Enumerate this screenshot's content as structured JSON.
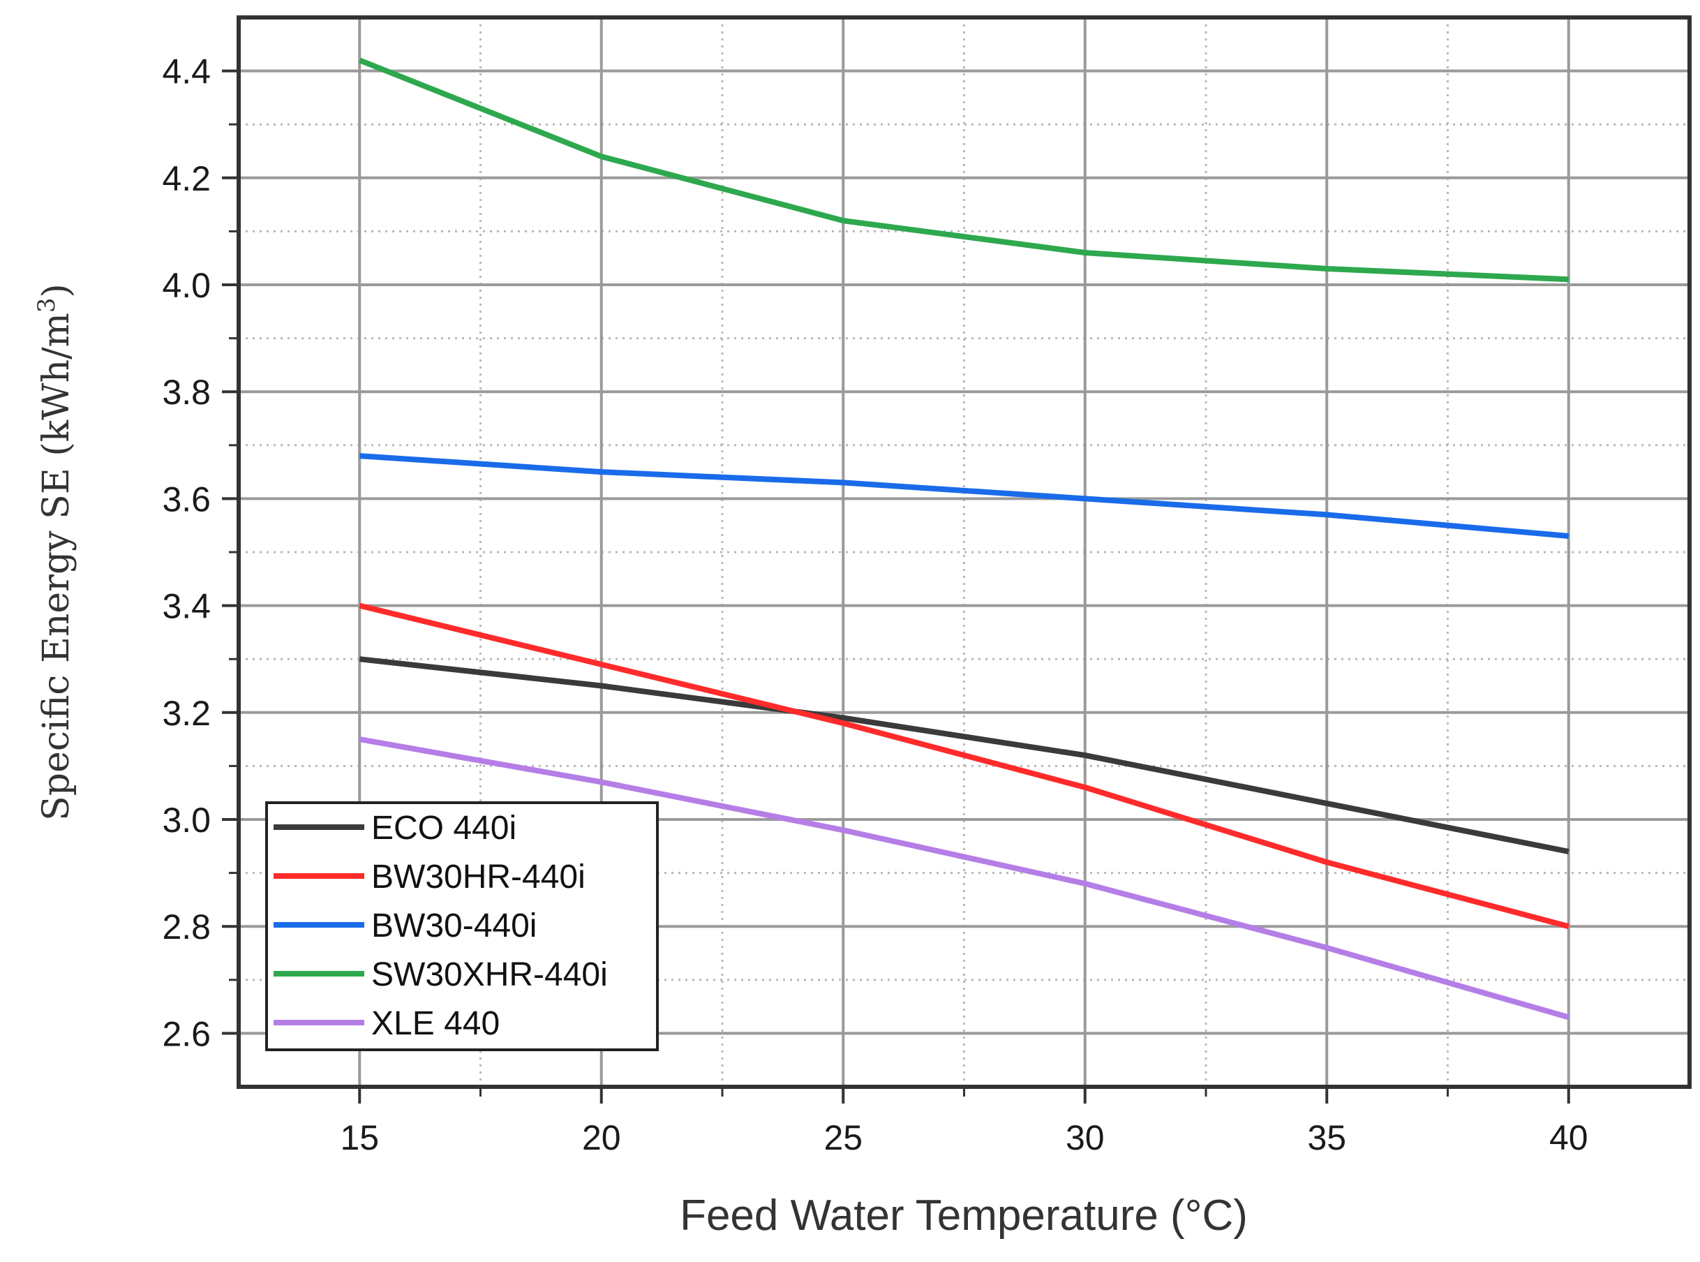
{
  "chart_data": {
    "type": "line",
    "title": "",
    "xlabel": "Feed Water Temperature (°C)",
    "ylabel_main": "Specific Energy SE (kWh/m",
    "ylabel_sup": "3",
    "ylabel_close": ")",
    "xlim": [
      12.5,
      42.5
    ],
    "ylim": [
      2.5,
      4.5
    ],
    "x_ticks": [
      15,
      20,
      25,
      30,
      35,
      40
    ],
    "x_tick_labels": [
      "15",
      "20",
      "25",
      "30",
      "35",
      "40"
    ],
    "y_ticks": [
      2.6,
      2.8,
      3.0,
      3.2,
      3.4,
      3.6,
      3.8,
      4.0,
      4.2,
      4.4
    ],
    "y_tick_labels": [
      "2.6",
      "2.8",
      "3.0",
      "3.2",
      "3.4",
      "3.6",
      "3.8",
      "4.0",
      "4.2",
      "4.4"
    ],
    "grid": true,
    "legend_position": "bottom-left",
    "x": [
      15,
      20,
      25,
      30,
      35,
      40
    ],
    "series": [
      {
        "name": "ECO 440i",
        "color": "#3a3a3a",
        "values": [
          3.3,
          3.25,
          3.19,
          3.12,
          3.03,
          2.94
        ]
      },
      {
        "name": "BW30HR-440i",
        "color": "#ff2b2b",
        "values": [
          3.4,
          3.29,
          3.18,
          3.06,
          2.92,
          2.8
        ]
      },
      {
        "name": "BW30-440i",
        "color": "#1a6bea",
        "values": [
          3.68,
          3.65,
          3.63,
          3.6,
          3.57,
          3.53
        ]
      },
      {
        "name": "SW30XHR-440i",
        "color": "#2ea84e",
        "values": [
          4.42,
          4.24,
          4.12,
          4.06,
          4.03,
          4.01
        ]
      },
      {
        "name": "XLE 440",
        "color": "#b57ee6",
        "values": [
          3.15,
          3.07,
          2.98,
          2.88,
          2.76,
          2.63
        ]
      }
    ]
  }
}
